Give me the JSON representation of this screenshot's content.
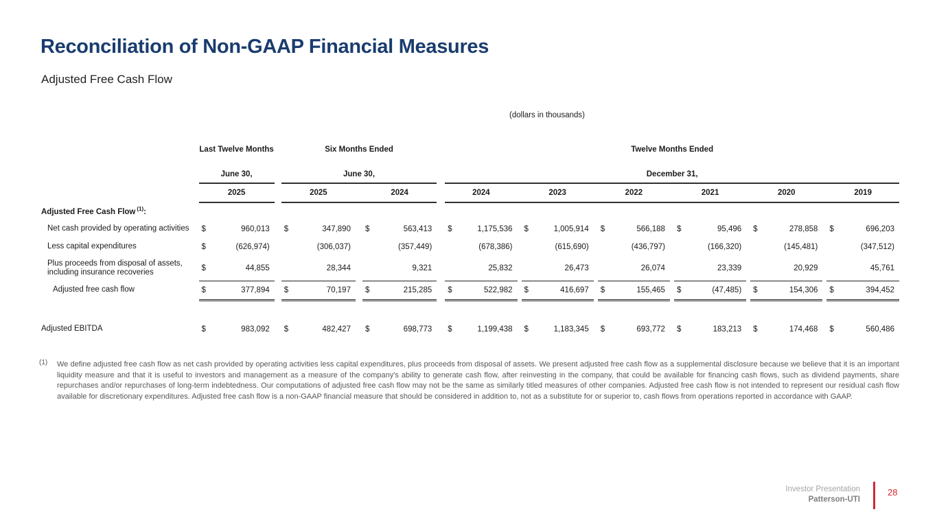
{
  "slide": {
    "title": "Reconciliation of Non-GAAP Financial Measures",
    "subtitle": "Adjusted Free Cash Flow",
    "units_note": "(dollars in thousands)"
  },
  "colors": {
    "title_blue": "#1a3c6e",
    "accent_red": "#d22630",
    "footnote_gray": "#565656"
  },
  "table": {
    "currency": "$",
    "col_groups": [
      {
        "title": "Last Twelve Months",
        "date": "June 30,",
        "years": [
          "2025"
        ]
      },
      {
        "title": "Six Months Ended",
        "date": "June 30,",
        "years": [
          "2025",
          "2024"
        ]
      },
      {
        "title": "Twelve Months Ended",
        "date": "December 31,",
        "years": [
          "2024",
          "2023",
          "2022",
          "2021",
          "2020",
          "2019"
        ]
      }
    ],
    "section": {
      "label": "Adjusted Free Cash Flow",
      "footnote_ref": "(1)",
      "suffix": ":"
    },
    "rows": [
      {
        "label": "Net cash provided by operating activities",
        "values": [
          "960,013",
          "347,890",
          "563,413",
          "1,175,536",
          "1,005,914",
          "566,188",
          "95,496",
          "278,858",
          "696,203"
        ]
      },
      {
        "label": "Less capital expenditures",
        "values": [
          "(626,974)",
          "(306,037)",
          "(357,449)",
          "(678,386)",
          "(615,690)",
          "(436,797)",
          "(166,320)",
          "(145,481)",
          "(347,512)"
        ]
      },
      {
        "label": "Plus proceeds from disposal of assets, including insurance recoveries",
        "values": [
          "44,855",
          "28,344",
          "9,321",
          "25,832",
          "26,473",
          "26,074",
          "23,339",
          "20,929",
          "45,761"
        ]
      },
      {
        "label": "Adjusted free cash flow",
        "values": [
          "377,894",
          "70,197",
          "215,285",
          "522,982",
          "416,697",
          "155,465",
          "(47,485)",
          "154,306",
          "394,452"
        ]
      }
    ],
    "ebitda": {
      "label": "Adjusted EBITDA",
      "values": [
        "983,092",
        "482,427",
        "698,773",
        "1,199,438",
        "1,183,345",
        "693,772",
        "183,213",
        "174,468",
        "560,486"
      ]
    }
  },
  "footnote": {
    "marker": "(1)",
    "text": "We define adjusted free cash flow as net cash provided by operating activities less capital expenditures, plus proceeds from disposal of assets. We present adjusted free cash flow as a supplemental disclosure because we believe that it is an important liquidity measure and that it is useful to investors and management as a measure of the company's ability to generate cash flow, after reinvesting in the company, that could be available for financing cash flows, such as dividend payments, share repurchases and/or repurchases of long-term indebtedness. Our computations of adjusted free cash flow may not be the same as similarly titled measures of other companies. Adjusted free cash flow is not intended to represent our residual cash flow available for discretionary expenditures. Adjusted free cash flow is a non-GAAP financial measure that should be considered in addition to, not as a substitute for or superior to, cash flows from operations reported in accordance with GAAP."
  },
  "footer": {
    "line1": "Investor Presentation",
    "line2": "Patterson-UTI",
    "page_number": "28"
  }
}
